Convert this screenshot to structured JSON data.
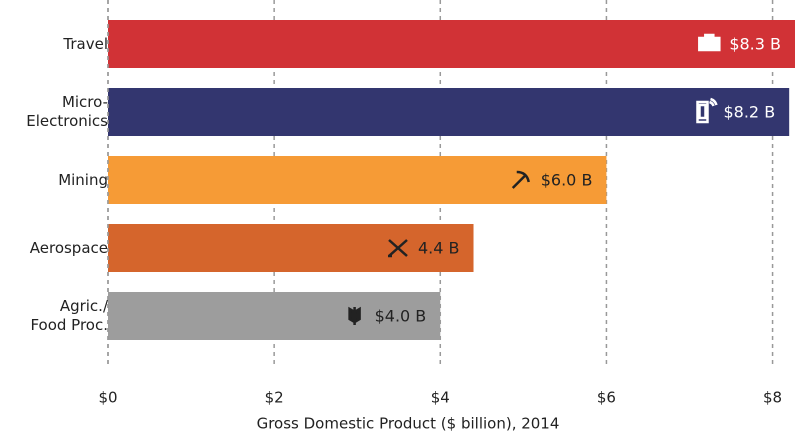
{
  "chart_data": {
    "type": "bar",
    "orientation": "horizontal",
    "categories": [
      "Travel",
      "Micro-\nElectronics",
      "Mining",
      "Aerospace",
      "Agric./\nFood Proc."
    ],
    "values": [
      8.3,
      8.2,
      6.0,
      4.4,
      4.0
    ],
    "value_labels": [
      "$8.3 B",
      "$8.2 B",
      "$6.0 B",
      "4.4 B",
      "$4.0 B"
    ],
    "colors": [
      "#d13236",
      "#33366f",
      "#f69b36",
      "#d5652c",
      "#9d9d9d"
    ],
    "label_colors": [
      "#ffffff",
      "#ffffff",
      "#222222",
      "#222222",
      "#222222"
    ],
    "xlabel": "Gross Domestic Product ($ billion), 2014",
    "xlim": [
      0,
      8.27
    ],
    "xticks": [
      {
        "value": 0,
        "label": "$0"
      },
      {
        "value": 2,
        "label": "$2"
      },
      {
        "value": 4,
        "label": "$4"
      },
      {
        "value": 6,
        "label": "$6"
      },
      {
        "value": 8,
        "label": "$8"
      }
    ],
    "grid": true
  }
}
